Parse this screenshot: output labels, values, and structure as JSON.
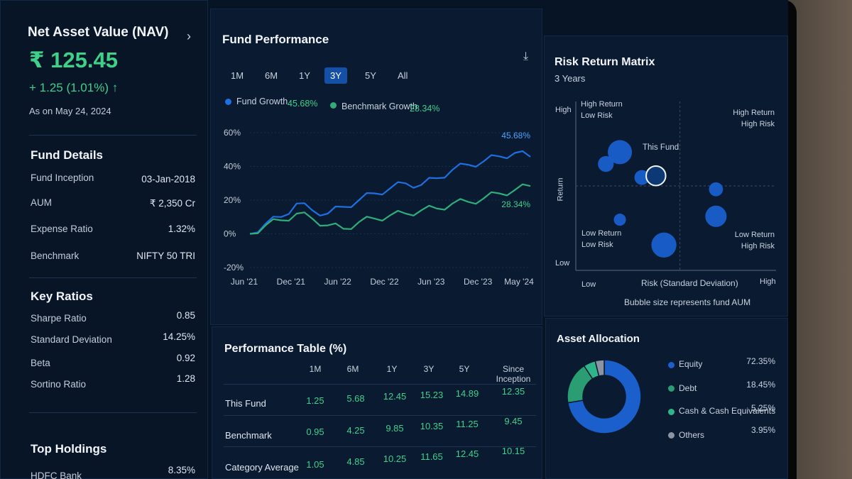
{
  "colors": {
    "accent_blue": "#1e6fe0",
    "accent_green": "#2fae7a",
    "up_green": "#3fd08a",
    "panel": "#0a1a30"
  },
  "nav": {
    "title": "Net Asset Value (NAV)",
    "value": "₹ 125.45",
    "change": "+ 1.25 (1.01%) ↑",
    "as_on": "As on May 24, 2024",
    "chevron_icon": "chevron-right-icon"
  },
  "fund_details": {
    "title": "Fund Details",
    "rows": [
      {
        "label": "Fund Inception",
        "value": "03-Jan-2018"
      },
      {
        "label": "AUM",
        "value": "₹ 2,350 Cr"
      },
      {
        "label": "Expense Ratio",
        "value": "1.32%"
      },
      {
        "label": "Benchmark",
        "value": "NIFTY 50 TRI"
      }
    ]
  },
  "key_ratios": {
    "title": "Key Ratios",
    "rows": [
      {
        "label": "Sharpe Ratio",
        "value": "0.85"
      },
      {
        "label": "Standard Deviation",
        "value": "14.25%"
      },
      {
        "label": "Beta",
        "value": "0.92"
      },
      {
        "label": "Sortino Ratio",
        "value": "1.28"
      }
    ]
  },
  "top_holdings": {
    "title": "Top Holdings",
    "rows": [
      {
        "label": "HDFC Bank",
        "value": "8.35%"
      }
    ]
  },
  "performance": {
    "title": "Fund Performance",
    "download_icon": "download-icon",
    "ranges": [
      "1M",
      "6M",
      "1Y",
      "3Y",
      "5Y",
      "All"
    ],
    "active_range": "3Y",
    "legend": [
      {
        "name": "Fund Growth",
        "value": "45.68%",
        "color": "#1e6fe0"
      },
      {
        "name": "Benchmark Growth",
        "value": "28.34%",
        "color": "#2fae7a"
      }
    ],
    "chart_data": {
      "type": "line",
      "x_labels": [
        "Jun '21",
        "Dec '21",
        "Jun '22",
        "Dec '22",
        "Jun '23",
        "Dec '23",
        "May '24"
      ],
      "y_ticks": [
        "60%",
        "40%",
        "20%",
        "0%",
        "-20%"
      ],
      "ylim": [
        -20,
        60
      ],
      "end_labels": {
        "fund": "45.68%",
        "benchmark": "28.34%"
      },
      "series": [
        {
          "name": "Fund Growth",
          "values": [
            0,
            6,
            10,
            18,
            14,
            12,
            16,
            20,
            24,
            27,
            30,
            29,
            33,
            38,
            41,
            43,
            46,
            48,
            45.68
          ]
        },
        {
          "name": "Benchmark Growth",
          "values": [
            0,
            5,
            8,
            12,
            9,
            5,
            3,
            7,
            9,
            11,
            12,
            14,
            15,
            18,
            19,
            21,
            24,
            26,
            28.34
          ]
        }
      ]
    }
  },
  "risk": {
    "title": "Risk Return Matrix",
    "subtitle": "3 Years",
    "y_axis": "Return",
    "x_axis": "Risk (Standard Deviation)",
    "y_high": "High",
    "y_low": "Low",
    "x_low": "Low",
    "x_high": "High",
    "quadrants": {
      "tl": [
        "High Return",
        "Low Risk"
      ],
      "tr": [
        "High Return",
        "High Risk"
      ],
      "bl": [
        "Low Return",
        "Low Risk"
      ],
      "br": [
        "Low Return",
        "High Risk"
      ]
    },
    "this_fund": "This Fund",
    "footnote": "Bubble size represents fund AUM",
    "chart_data": {
      "type": "scatter",
      "xlim": [
        0,
        1
      ],
      "ylim": [
        0,
        1
      ],
      "points": [
        {
          "x": 0.22,
          "y": 0.7,
          "size": 1.0
        },
        {
          "x": 0.15,
          "y": 0.63,
          "size": 0.55
        },
        {
          "x": 0.33,
          "y": 0.55,
          "size": 0.5
        },
        {
          "x": 0.4,
          "y": 0.56,
          "size": 0.75,
          "label": "This Fund"
        },
        {
          "x": 0.7,
          "y": 0.48,
          "size": 0.45
        },
        {
          "x": 0.7,
          "y": 0.32,
          "size": 0.85
        },
        {
          "x": 0.22,
          "y": 0.3,
          "size": 0.35
        },
        {
          "x": 0.44,
          "y": 0.15,
          "size": 1.05
        }
      ]
    }
  },
  "perf_table": {
    "title": "Performance Table (%)",
    "columns": [
      "1M",
      "6M",
      "1Y",
      "3Y",
      "5Y",
      "Since Inception"
    ],
    "rows": [
      {
        "label": "This Fund",
        "values": [
          "1.25",
          "5.68",
          "12.45",
          "15.23",
          "14.89",
          "12.35"
        ]
      },
      {
        "label": "Benchmark",
        "values": [
          "0.95",
          "4.25",
          "9.85",
          "10.35",
          "11.25",
          "9.45"
        ]
      },
      {
        "label": "Category Average",
        "values": [
          "1.05",
          "4.85",
          "10.25",
          "11.65",
          "12.45",
          "10.15"
        ]
      }
    ]
  },
  "allocation": {
    "title": "Asset Allocation",
    "chart_data": {
      "type": "pie",
      "slices": [
        {
          "label": "Equity",
          "value": 72.35,
          "display": "72.35%",
          "color": "#1a5fcc"
        },
        {
          "label": "Debt",
          "value": 18.45,
          "display": "18.45%",
          "color": "#2a9d72"
        },
        {
          "label": "Cash & Cash Equivalents",
          "value": 5.25,
          "display": "5.25%",
          "color": "#2fb58a"
        },
        {
          "label": "Others",
          "value": 3.95,
          "display": "3.95%",
          "color": "#8a94a2"
        }
      ]
    }
  }
}
